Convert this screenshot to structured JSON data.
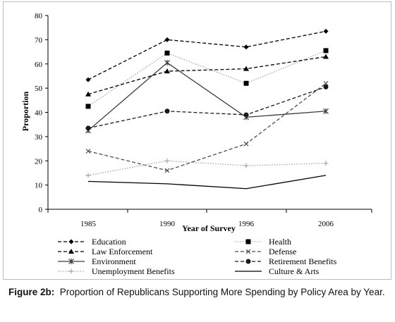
{
  "chart_data": {
    "type": "line",
    "title": "",
    "xlabel": "Year of Survey",
    "ylabel": "Proportion",
    "x": [
      "1985",
      "1990",
      "1996",
      "2006"
    ],
    "ylim": [
      0,
      80
    ],
    "yticks": [
      0,
      10,
      20,
      30,
      40,
      50,
      60,
      70,
      80
    ],
    "grid": false,
    "legend_position": "bottom",
    "series": [
      {
        "name": "Education",
        "values": [
          53.5,
          70,
          67,
          73.5
        ],
        "color": "#000000",
        "dash": "dashed",
        "marker": "diamond"
      },
      {
        "name": "Health",
        "values": [
          42.5,
          64.5,
          52,
          65.5
        ],
        "color": "#a6a6a6",
        "dash": "dotted",
        "marker": "square"
      },
      {
        "name": "Law Enforcement",
        "values": [
          47.5,
          57,
          58,
          63
        ],
        "color": "#000000",
        "dash": "dashed",
        "marker": "triangle"
      },
      {
        "name": "Defense",
        "values": [
          24,
          16,
          27,
          52
        ],
        "color": "#4d4d4d",
        "dash": "dashed",
        "marker": "x"
      },
      {
        "name": "Environment",
        "values": [
          32.5,
          60.5,
          38,
          40.5
        ],
        "color": "#3a3a3a",
        "dash": "solid",
        "marker": "star"
      },
      {
        "name": "Retirement Benefits",
        "values": [
          33.5,
          40.5,
          39,
          50.5
        ],
        "color": "#1a1a1a",
        "dash": "dashed",
        "marker": "circle"
      },
      {
        "name": "Unemployment Benefits",
        "values": [
          14,
          20,
          18,
          19
        ],
        "color": "#a6a6a6",
        "dash": "dotted",
        "marker": "plus"
      },
      {
        "name": "Culture & Arts",
        "values": [
          11.5,
          10.5,
          8.5,
          14
        ],
        "color": "#000000",
        "dash": "solid",
        "marker": "none"
      }
    ]
  },
  "caption": {
    "label": "Figure 2b:",
    "text": "Proportion of Republicans Supporting More Spending by Policy Area by Year."
  }
}
